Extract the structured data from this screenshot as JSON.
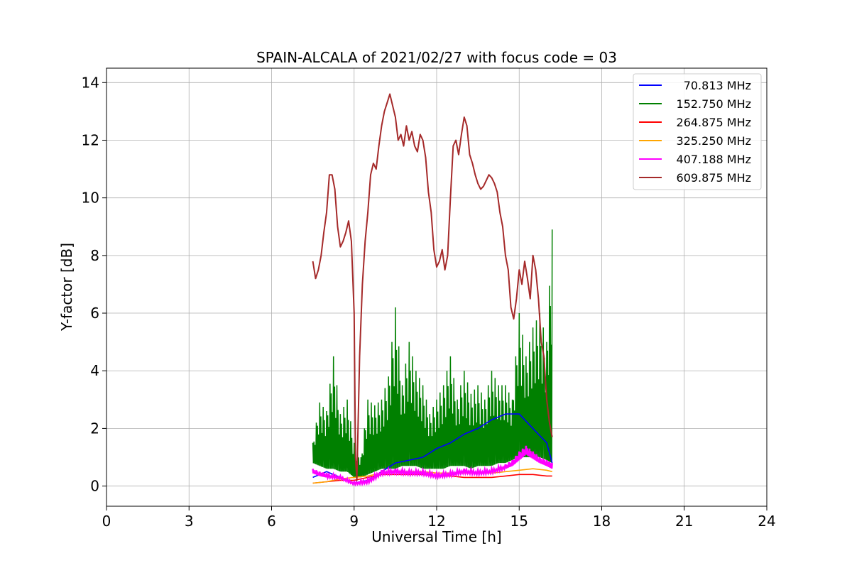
{
  "chart_data": {
    "type": "line",
    "title": "SPAIN-ALCALA of 2021/02/27 with focus code = 03",
    "xlabel": "Universal Time [h]",
    "ylabel": "Y-factor [dB]",
    "xlim": [
      0,
      24
    ],
    "ylim": [
      -0.7,
      14.5
    ],
    "xticks": [
      0,
      3,
      6,
      9,
      12,
      15,
      18,
      21,
      24
    ],
    "yticks": [
      0,
      2,
      4,
      6,
      8,
      10,
      12,
      14
    ],
    "grid": true,
    "legend_position": "top-right",
    "series": [
      {
        "name": "70.813 MHz",
        "color": "#0000ff",
        "x": [
          7.5,
          8.0,
          8.5,
          9.0,
          9.5,
          10.0,
          10.5,
          11.0,
          11.5,
          12.0,
          12.5,
          13.0,
          13.5,
          14.0,
          14.5,
          15.0,
          15.5,
          16.0,
          16.2
        ],
        "y": [
          0.3,
          0.5,
          0.3,
          0.1,
          0.2,
          0.5,
          0.8,
          0.9,
          1.0,
          1.3,
          1.5,
          1.8,
          2.0,
          2.3,
          2.5,
          2.5,
          2.0,
          1.5,
          0.8
        ]
      },
      {
        "name": "152.750 MHz",
        "color": "#008000",
        "x": [
          7.5,
          7.75,
          8.0,
          8.25,
          8.5,
          8.75,
          9.0,
          9.25,
          9.5,
          9.75,
          10.0,
          10.25,
          10.5,
          10.75,
          11.0,
          11.25,
          11.5,
          11.75,
          12.0,
          12.25,
          12.5,
          12.75,
          13.0,
          13.25,
          13.5,
          13.75,
          14.0,
          14.25,
          14.5,
          14.75,
          15.0,
          15.25,
          15.5,
          15.75,
          16.0,
          16.2
        ],
        "y": [
          1.5,
          2.9,
          2.6,
          4.5,
          2.5,
          3.0,
          1.5,
          1.0,
          3.0,
          2.8,
          3.0,
          3.8,
          6.2,
          3.5,
          5.0,
          4.0,
          3.5,
          2.5,
          3.0,
          3.5,
          4.5,
          3.0,
          4.0,
          3.2,
          3.5,
          3.0,
          4.0,
          3.5,
          3.5,
          3.0,
          6.0,
          4.5,
          5.5,
          6.0,
          5.0,
          8.9
        ],
        "y_low": [
          0.8,
          0.7,
          0.6,
          0.6,
          0.5,
          0.5,
          0.3,
          0.3,
          0.4,
          0.5,
          0.6,
          0.6,
          0.6,
          0.7,
          0.7,
          0.7,
          0.6,
          0.6,
          0.6,
          0.6,
          0.7,
          0.7,
          0.7,
          0.6,
          0.7,
          0.7,
          0.7,
          0.8,
          0.8,
          0.9,
          1.0,
          1.0,
          1.0,
          1.0,
          0.9,
          0.8
        ]
      },
      {
        "name": "264.875 MHz",
        "color": "#ff0000",
        "x": [
          7.5,
          8.0,
          8.5,
          9.0,
          9.5,
          10.0,
          10.5,
          11.0,
          11.5,
          12.0,
          12.5,
          13.0,
          13.5,
          14.0,
          14.5,
          15.0,
          15.5,
          16.0,
          16.2
        ],
        "y": [
          0.1,
          0.15,
          0.2,
          0.2,
          0.3,
          0.4,
          0.4,
          0.4,
          0.4,
          0.35,
          0.35,
          0.3,
          0.3,
          0.3,
          0.35,
          0.4,
          0.4,
          0.35,
          0.35
        ]
      },
      {
        "name": "325.250 MHz",
        "color": "#ffa500",
        "x": [
          7.5,
          8.0,
          8.5,
          9.0,
          9.5,
          10.0,
          10.5,
          11.0,
          11.5,
          12.0,
          12.5,
          13.0,
          13.5,
          14.0,
          14.5,
          15.0,
          15.5,
          16.0,
          16.2
        ],
        "y": [
          0.1,
          0.15,
          0.25,
          0.3,
          0.35,
          0.45,
          0.5,
          0.5,
          0.5,
          0.45,
          0.45,
          0.45,
          0.45,
          0.45,
          0.5,
          0.55,
          0.6,
          0.55,
          0.5
        ]
      },
      {
        "name": "407.188 MHz",
        "color": "#ff00ff",
        "x": [
          7.5,
          7.75,
          8.0,
          8.5,
          9.0,
          9.5,
          10.0,
          10.5,
          11.0,
          11.5,
          12.0,
          12.5,
          13.0,
          13.5,
          14.0,
          14.5,
          14.75,
          15.0,
          15.25,
          15.5,
          15.75,
          16.0,
          16.2
        ],
        "y": [
          0.6,
          0.5,
          0.45,
          0.35,
          0.15,
          0.25,
          0.55,
          0.6,
          0.55,
          0.55,
          0.45,
          0.5,
          0.6,
          0.55,
          0.6,
          0.75,
          0.9,
          1.2,
          1.4,
          1.2,
          1.0,
          0.9,
          0.8
        ],
        "y_low": [
          0.45,
          0.35,
          0.3,
          0.25,
          0.05,
          0.1,
          0.4,
          0.45,
          0.4,
          0.4,
          0.3,
          0.35,
          0.45,
          0.4,
          0.45,
          0.6,
          0.7,
          0.9,
          1.1,
          0.95,
          0.8,
          0.7,
          0.6
        ]
      },
      {
        "name": "609.875 MHz",
        "color": "#a52a2a",
        "x": [
          7.5,
          7.6,
          7.7,
          7.8,
          7.9,
          8.0,
          8.1,
          8.2,
          8.3,
          8.4,
          8.5,
          8.6,
          8.7,
          8.8,
          8.9,
          9.0,
          9.05,
          9.1,
          9.2,
          9.3,
          9.4,
          9.5,
          9.6,
          9.7,
          9.8,
          9.9,
          10.0,
          10.1,
          10.2,
          10.3,
          10.4,
          10.5,
          10.6,
          10.7,
          10.8,
          10.9,
          11.0,
          11.1,
          11.2,
          11.3,
          11.4,
          11.5,
          11.6,
          11.7,
          11.8,
          11.9,
          12.0,
          12.1,
          12.2,
          12.3,
          12.4,
          12.5,
          12.6,
          12.7,
          12.8,
          12.9,
          13.0,
          13.1,
          13.2,
          13.3,
          13.4,
          13.5,
          13.6,
          13.7,
          13.8,
          13.9,
          14.0,
          14.1,
          14.2,
          14.3,
          14.4,
          14.5,
          14.6,
          14.7,
          14.8,
          14.9,
          15.0,
          15.1,
          15.2,
          15.3,
          15.4,
          15.5,
          15.6,
          15.7,
          15.8,
          15.9,
          16.0,
          16.1,
          16.2
        ],
        "y": [
          7.8,
          7.2,
          7.5,
          8.0,
          8.8,
          9.5,
          10.8,
          10.8,
          10.3,
          9.0,
          8.3,
          8.5,
          8.8,
          9.2,
          8.5,
          6.0,
          1.0,
          0.2,
          4.5,
          7.0,
          8.5,
          9.5,
          10.8,
          11.2,
          11.0,
          11.8,
          12.5,
          13.0,
          13.3,
          13.6,
          13.2,
          12.8,
          12.0,
          12.2,
          11.8,
          12.5,
          12.0,
          12.3,
          11.8,
          11.6,
          12.2,
          12.0,
          11.4,
          10.2,
          9.5,
          8.2,
          7.6,
          7.8,
          8.2,
          7.5,
          8.0,
          10.0,
          11.8,
          12.0,
          11.5,
          12.2,
          12.8,
          12.5,
          11.5,
          11.2,
          10.8,
          10.5,
          10.3,
          10.4,
          10.6,
          10.8,
          10.7,
          10.5,
          10.2,
          9.5,
          9.0,
          8.0,
          7.5,
          6.2,
          5.8,
          6.5,
          7.5,
          7.0,
          7.8,
          7.2,
          6.5,
          8.0,
          7.5,
          6.5,
          5.0,
          4.5,
          3.0,
          2.2,
          1.7
        ]
      }
    ]
  }
}
